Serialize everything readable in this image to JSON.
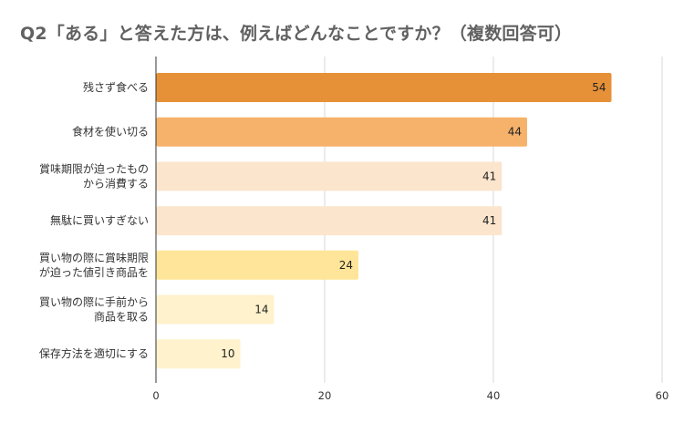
{
  "chart_data": {
    "type": "bar",
    "orientation": "horizontal",
    "title": "Q2「ある」と答えた方は、例えばどんなことですか？（複数回答可）",
    "xlabel": "",
    "ylabel": "",
    "xlim": [
      0,
      60
    ],
    "ticks": [
      "0",
      "20",
      "40",
      "60"
    ],
    "tick_values": [
      0,
      20,
      40,
      60
    ],
    "grid": true,
    "categories": [
      [
        "残さず食べる"
      ],
      [
        "食材を使い切る"
      ],
      [
        "賞味期限が迫ったもの",
        "から消費する"
      ],
      [
        "無駄に買いすぎない"
      ],
      [
        "買い物の際に賞味期限",
        "が迫った値引き商品を"
      ],
      [
        "買い物の際に手前から",
        "商品を取る"
      ],
      [
        "保存方法を適切にする"
      ]
    ],
    "values": [
      54,
      44,
      41,
      41,
      24,
      14,
      10
    ],
    "colors": [
      "#e69138",
      "#f6b26b",
      "#fce5cd",
      "#fce5cd",
      "#ffe599",
      "#fff2cc",
      "#fff2cc"
    ]
  }
}
